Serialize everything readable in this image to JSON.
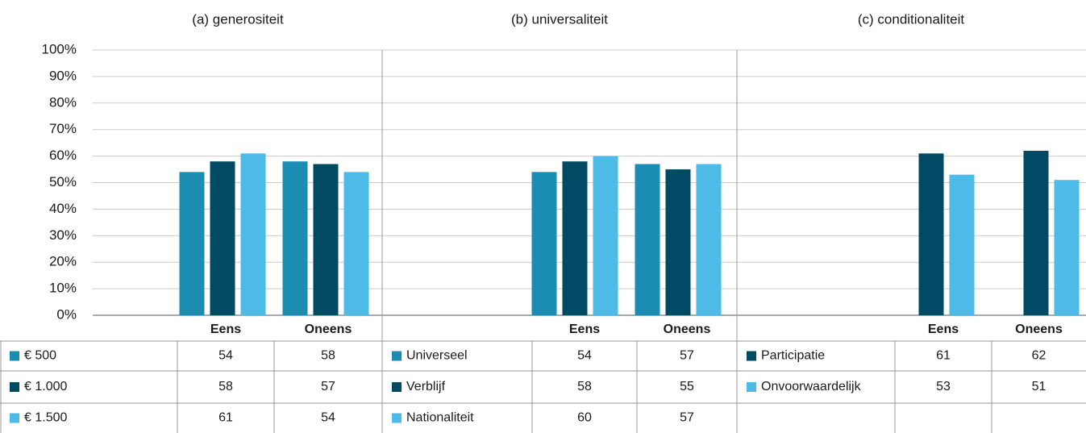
{
  "chart_data": [
    {
      "type": "bar",
      "title": "(a) generositeit",
      "categories": [
        "Eens",
        "Oneens"
      ],
      "series": [
        {
          "name": "€ 500",
          "color": "#1b8db3",
          "values": [
            54,
            58
          ]
        },
        {
          "name": "€ 1.000",
          "color": "#004a63",
          "values": [
            58,
            57
          ]
        },
        {
          "name": "€ 1.500",
          "color": "#4dbbe8",
          "values": [
            61,
            54
          ]
        }
      ],
      "ylim": [
        0,
        100
      ],
      "yticks": [
        {
          "value": 0,
          "label": "0%"
        },
        {
          "value": 10,
          "label": "10%"
        },
        {
          "value": 20,
          "label": "20%"
        },
        {
          "value": 30,
          "label": "30%"
        },
        {
          "value": 40,
          "label": "40%"
        },
        {
          "value": 50,
          "label": "50%"
        },
        {
          "value": 60,
          "label": "60%"
        },
        {
          "value": 70,
          "label": "70%"
        },
        {
          "value": 80,
          "label": "80%"
        },
        {
          "value": 90,
          "label": "90%"
        },
        {
          "value": 100,
          "label": "100%"
        }
      ],
      "grid": true
    },
    {
      "type": "bar",
      "title": "(b) universaliteit",
      "categories": [
        "Eens",
        "Oneens"
      ],
      "series": [
        {
          "name": "Universeel",
          "color": "#1b8db3",
          "values": [
            54,
            57
          ]
        },
        {
          "name": "Verblijf",
          "color": "#004a63",
          "values": [
            58,
            55
          ]
        },
        {
          "name": "Nationaliteit",
          "color": "#4dbbe8",
          "values": [
            60,
            57
          ]
        }
      ],
      "ylim": [
        0,
        100
      ]
    },
    {
      "type": "bar",
      "title": "(c) conditionaliteit",
      "categories": [
        "Eens",
        "Oneens"
      ],
      "series": [
        {
          "name": "Participatie",
          "color": "#004a63",
          "values": [
            61,
            62
          ]
        },
        {
          "name": "Onvoorwaardelijk",
          "color": "#4dbbe8",
          "values": [
            53,
            51
          ]
        }
      ],
      "ylim": [
        0,
        100
      ]
    }
  ]
}
